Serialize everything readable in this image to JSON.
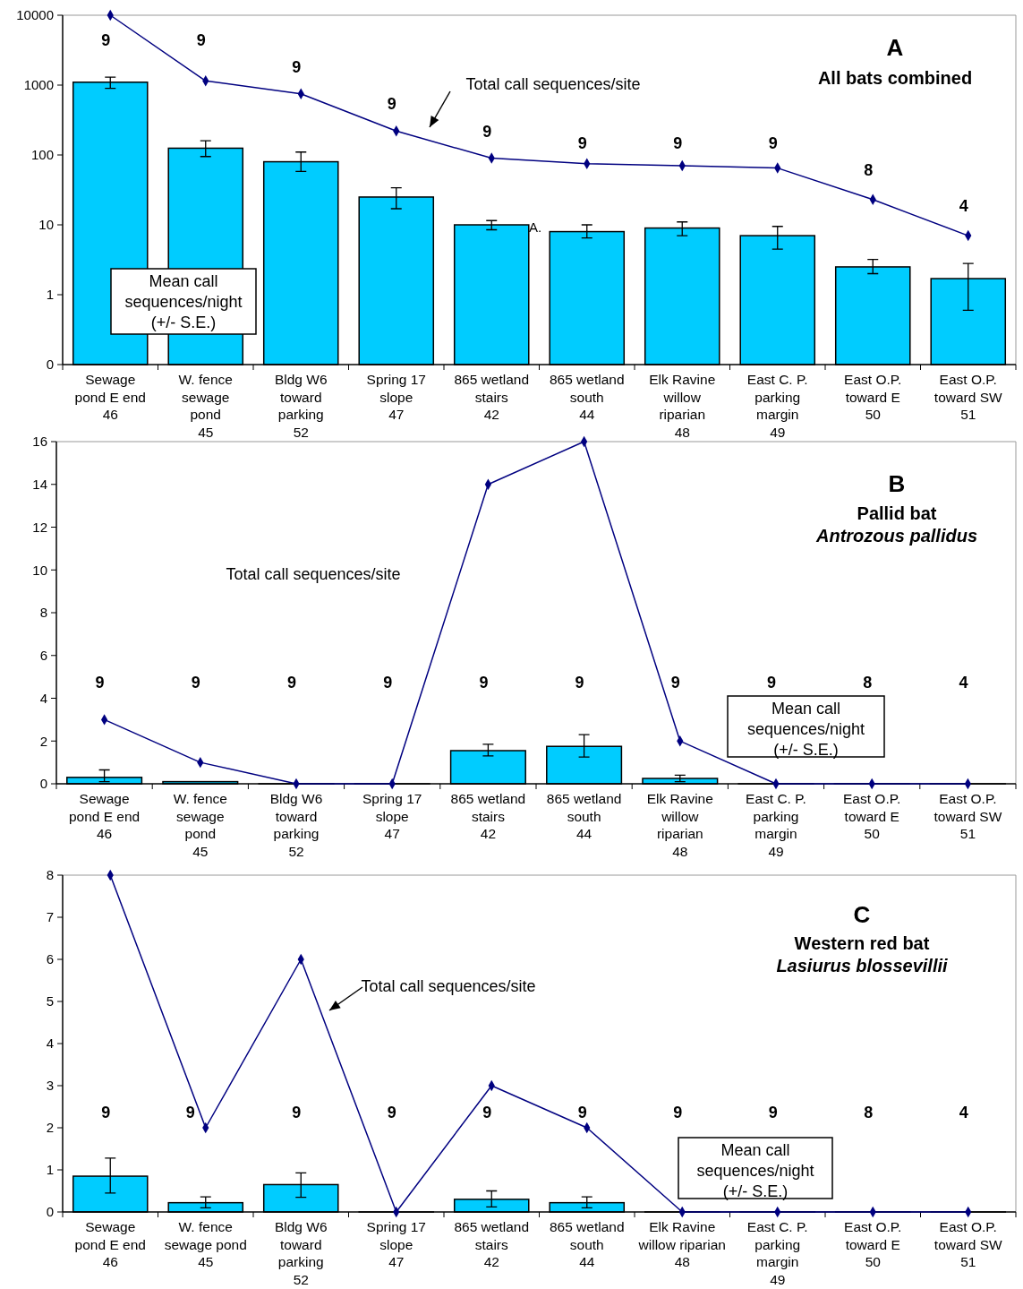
{
  "chart_data": [
    {
      "type": "bar",
      "title": "A",
      "subtitle": "All bats combined",
      "log": "y",
      "ylim": [
        0.1,
        10000
      ],
      "yticks": [
        {
          "value": 0.1,
          "label": "0"
        },
        1,
        10,
        100,
        1000,
        10000
      ],
      "categories": [
        "Sewage\npond E end\n46",
        "W. fence\nsewage\npond\n45",
        "Bldg W6\ntoward\nparking\n52",
        "Spring 17\nslope\n47",
        "865 wetland\nstairs\n42",
        "865 wetland\nsouth\n44",
        "Elk Ravine\nwillow\nriparian\n48",
        "East C. P.\nparking\nmargin\n49",
        "East O.P.\ntoward E\n50",
        "East O.P.\ntoward SW\n51"
      ],
      "series": [
        {
          "color": "#00ccff",
          "values": [
            1100,
            125,
            80,
            25,
            10,
            8,
            9,
            7,
            2.5,
            1.7
          ],
          "errors": [
            [
              900,
              1300
            ],
            [
              95,
              160
            ],
            [
              58,
              110
            ],
            [
              17,
              34
            ],
            [
              8.5,
              11.5
            ],
            [
              6.5,
              10
            ],
            [
              7,
              11
            ],
            [
              4.5,
              9.5
            ],
            [
              2,
              3.2
            ],
            [
              0.6,
              2.8
            ]
          ]
        },
        {
          "type": "line",
          "color": "#000080",
          "marker": "diamond",
          "values": [
            10000,
            1150,
            750,
            220,
            90,
            75,
            70,
            65,
            23,
            7
          ]
        }
      ],
      "annotations": [
        "Total call sequences/site",
        "Mean call\nsequences/night\n(+/- S.E.)",
        "A.",
        "9",
        "9",
        "9",
        "9",
        "9",
        "9",
        "9",
        "9",
        "8",
        "4"
      ]
    },
    {
      "type": "bar",
      "title": "B",
      "subtitle": "Pallid bat\nAntrozous pallidus",
      "ylim": [
        0,
        16
      ],
      "yticks": [
        0,
        2,
        4,
        6,
        8,
        10,
        12,
        14,
        16
      ],
      "categories": [
        "Sewage\npond E end\n46",
        "W. fence\nsewage\npond\n45",
        "Bldg W6\ntoward\nparking\n52",
        "Spring 17\nslope\n47",
        "865 wetland\nstairs\n42",
        "865 wetland\nsouth\n44",
        "Elk Ravine\nwillow\nriparian\n48",
        "East C. P.\nparking\nmargin\n49",
        "East O.P.\ntoward E\n50",
        "East O.P.\ntoward SW\n51"
      ],
      "series": [
        {
          "color": "#00ccff",
          "values": [
            0.3,
            0.1,
            0,
            0,
            1.55,
            1.75,
            0.25,
            0,
            0,
            0
          ],
          "errors": [
            [
              0.1,
              0.65
            ],
            null,
            null,
            null,
            [
              1.3,
              1.85
            ],
            [
              1.25,
              2.3
            ],
            [
              0.1,
              0.4
            ],
            null,
            null,
            null
          ]
        },
        {
          "type": "line",
          "color": "#000080",
          "marker": "diamond",
          "values": [
            3,
            1,
            0,
            0,
            14,
            16,
            2,
            0,
            0,
            0
          ]
        }
      ],
      "annotations": [
        "Total call sequences/site",
        "Mean call\nsequences/night\n(+/- S.E.)",
        "9",
        "9",
        "9",
        "9",
        "9",
        "9",
        "9",
        "9",
        "8",
        "4"
      ]
    },
    {
      "type": "bar",
      "title": "C",
      "subtitle": "Western red bat\nLasiurus blossevillii",
      "ylim": [
        0,
        8
      ],
      "yticks": [
        0,
        1,
        2,
        3,
        4,
        5,
        6,
        7,
        8
      ],
      "categories": [
        "Sewage\npond E end\n46",
        "W. fence\nsewage pond\n45",
        "Bldg W6\ntoward\nparking\n52",
        "Spring 17\nslope\n47",
        "865 wetland\nstairs\n42",
        "865 wetland\nsouth\n44",
        "Elk Ravine\nwillow riparian\n48",
        "East C. P.\nparking\nmargin\n49",
        "East O.P.\ntoward E\n50",
        "East O.P.\ntoward SW\n51"
      ],
      "series": [
        {
          "color": "#00ccff",
          "values": [
            0.85,
            0.22,
            0.65,
            0,
            0.3,
            0.22,
            0,
            0,
            0,
            0
          ],
          "errors": [
            [
              0.45,
              1.28
            ],
            [
              0.1,
              0.36
            ],
            [
              0.35,
              0.93
            ],
            null,
            [
              0.12,
              0.5
            ],
            [
              0.1,
              0.36
            ],
            null,
            null,
            null,
            null
          ]
        },
        {
          "type": "line",
          "color": "#000080",
          "marker": "diamond",
          "values": [
            8,
            2,
            6,
            0,
            3,
            2,
            0,
            0,
            0,
            0
          ]
        }
      ],
      "annotations": [
        "Total call sequences/site",
        "Mean call\nsequences/night\n(+/- S.E.)",
        "9",
        "9",
        "9",
        "9",
        "9",
        "9",
        "9",
        "9",
        "8",
        "4"
      ]
    }
  ]
}
